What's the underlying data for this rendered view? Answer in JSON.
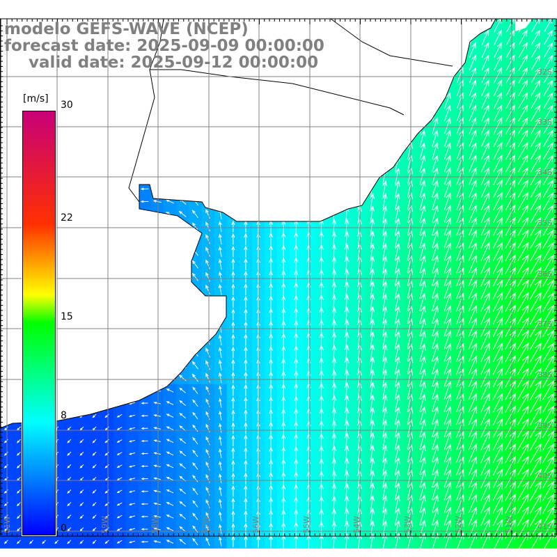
{
  "title": {
    "line1": "modelo GEFS-WAVE (NCEP)",
    "line2": "forecast date: 2025-09-09 00:00:00",
    "line3": "valid date: 2025-09-12 00:00:00"
  },
  "colorbar": {
    "units": "[m/s]",
    "min": 0,
    "max": 30,
    "ticks": [
      {
        "value": 30,
        "label": "30"
      },
      {
        "value": 22,
        "label": "22"
      },
      {
        "value": 15,
        "label": "15"
      },
      {
        "value": 8,
        "label": "8"
      },
      {
        "value": 0,
        "label": "0"
      }
    ],
    "stops": [
      {
        "value": 0,
        "color": "#0000ff"
      },
      {
        "value": 8,
        "color": "#00ffff"
      },
      {
        "value": 15,
        "color": "#00ff00"
      },
      {
        "value": 17,
        "color": "#ffff00"
      },
      {
        "value": 22,
        "color": "#ff3000"
      },
      {
        "value": 30,
        "color": "#c80078"
      }
    ]
  },
  "longitude_labels": [
    "61W",
    "60W",
    "59W",
    "58W",
    "57W",
    "56W",
    "55W",
    "54W",
    "53W",
    "52W",
    "51W"
  ],
  "latitude_labels": [
    "32S",
    "33S",
    "34S",
    "35S",
    "36S",
    "37S",
    "38S",
    "39S",
    "40S",
    "41S"
  ],
  "colors": {
    "land": "#ffffff",
    "grid": "#808080",
    "label": "#808080",
    "arrow": "#ffffff"
  }
}
